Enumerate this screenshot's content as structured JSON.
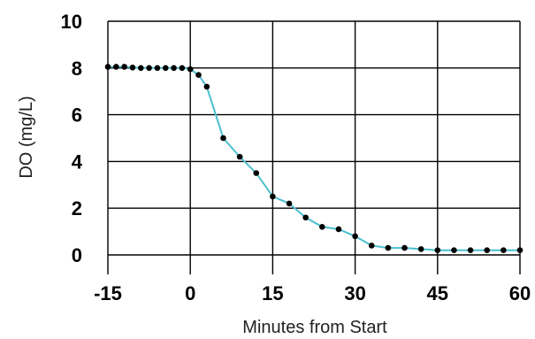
{
  "chart_data": {
    "type": "line",
    "xlabel": "Minutes from Start",
    "ylabel": "DO  (mg/L)",
    "xlim": [
      -15,
      60
    ],
    "ylim": [
      0,
      10
    ],
    "x_ticks": [
      -15,
      0,
      15,
      30,
      45,
      60
    ],
    "y_ticks": [
      0,
      2,
      4,
      6,
      8,
      10
    ],
    "grid": true,
    "line_color": "#4bbfcf",
    "point_color": "#000000",
    "series": [
      {
        "x": [
          -15,
          -13.5,
          -12,
          -10.5,
          -9,
          -7.5,
          -6,
          -4.5,
          -3,
          -1.5,
          0,
          1.5,
          3,
          6,
          9,
          12,
          15,
          18,
          21,
          24,
          27,
          30,
          33,
          36,
          39,
          42,
          45,
          48,
          51,
          54,
          57,
          60
        ],
        "y": [
          8.05,
          8.05,
          8.05,
          8.02,
          8.0,
          8.0,
          8.0,
          8.0,
          8.0,
          8.0,
          7.95,
          7.7,
          7.2,
          5.0,
          4.2,
          3.5,
          2.5,
          2.2,
          1.6,
          1.2,
          1.1,
          0.8,
          0.4,
          0.3,
          0.3,
          0.25,
          0.2,
          0.2,
          0.2,
          0.2,
          0.2,
          0.2
        ]
      }
    ]
  }
}
